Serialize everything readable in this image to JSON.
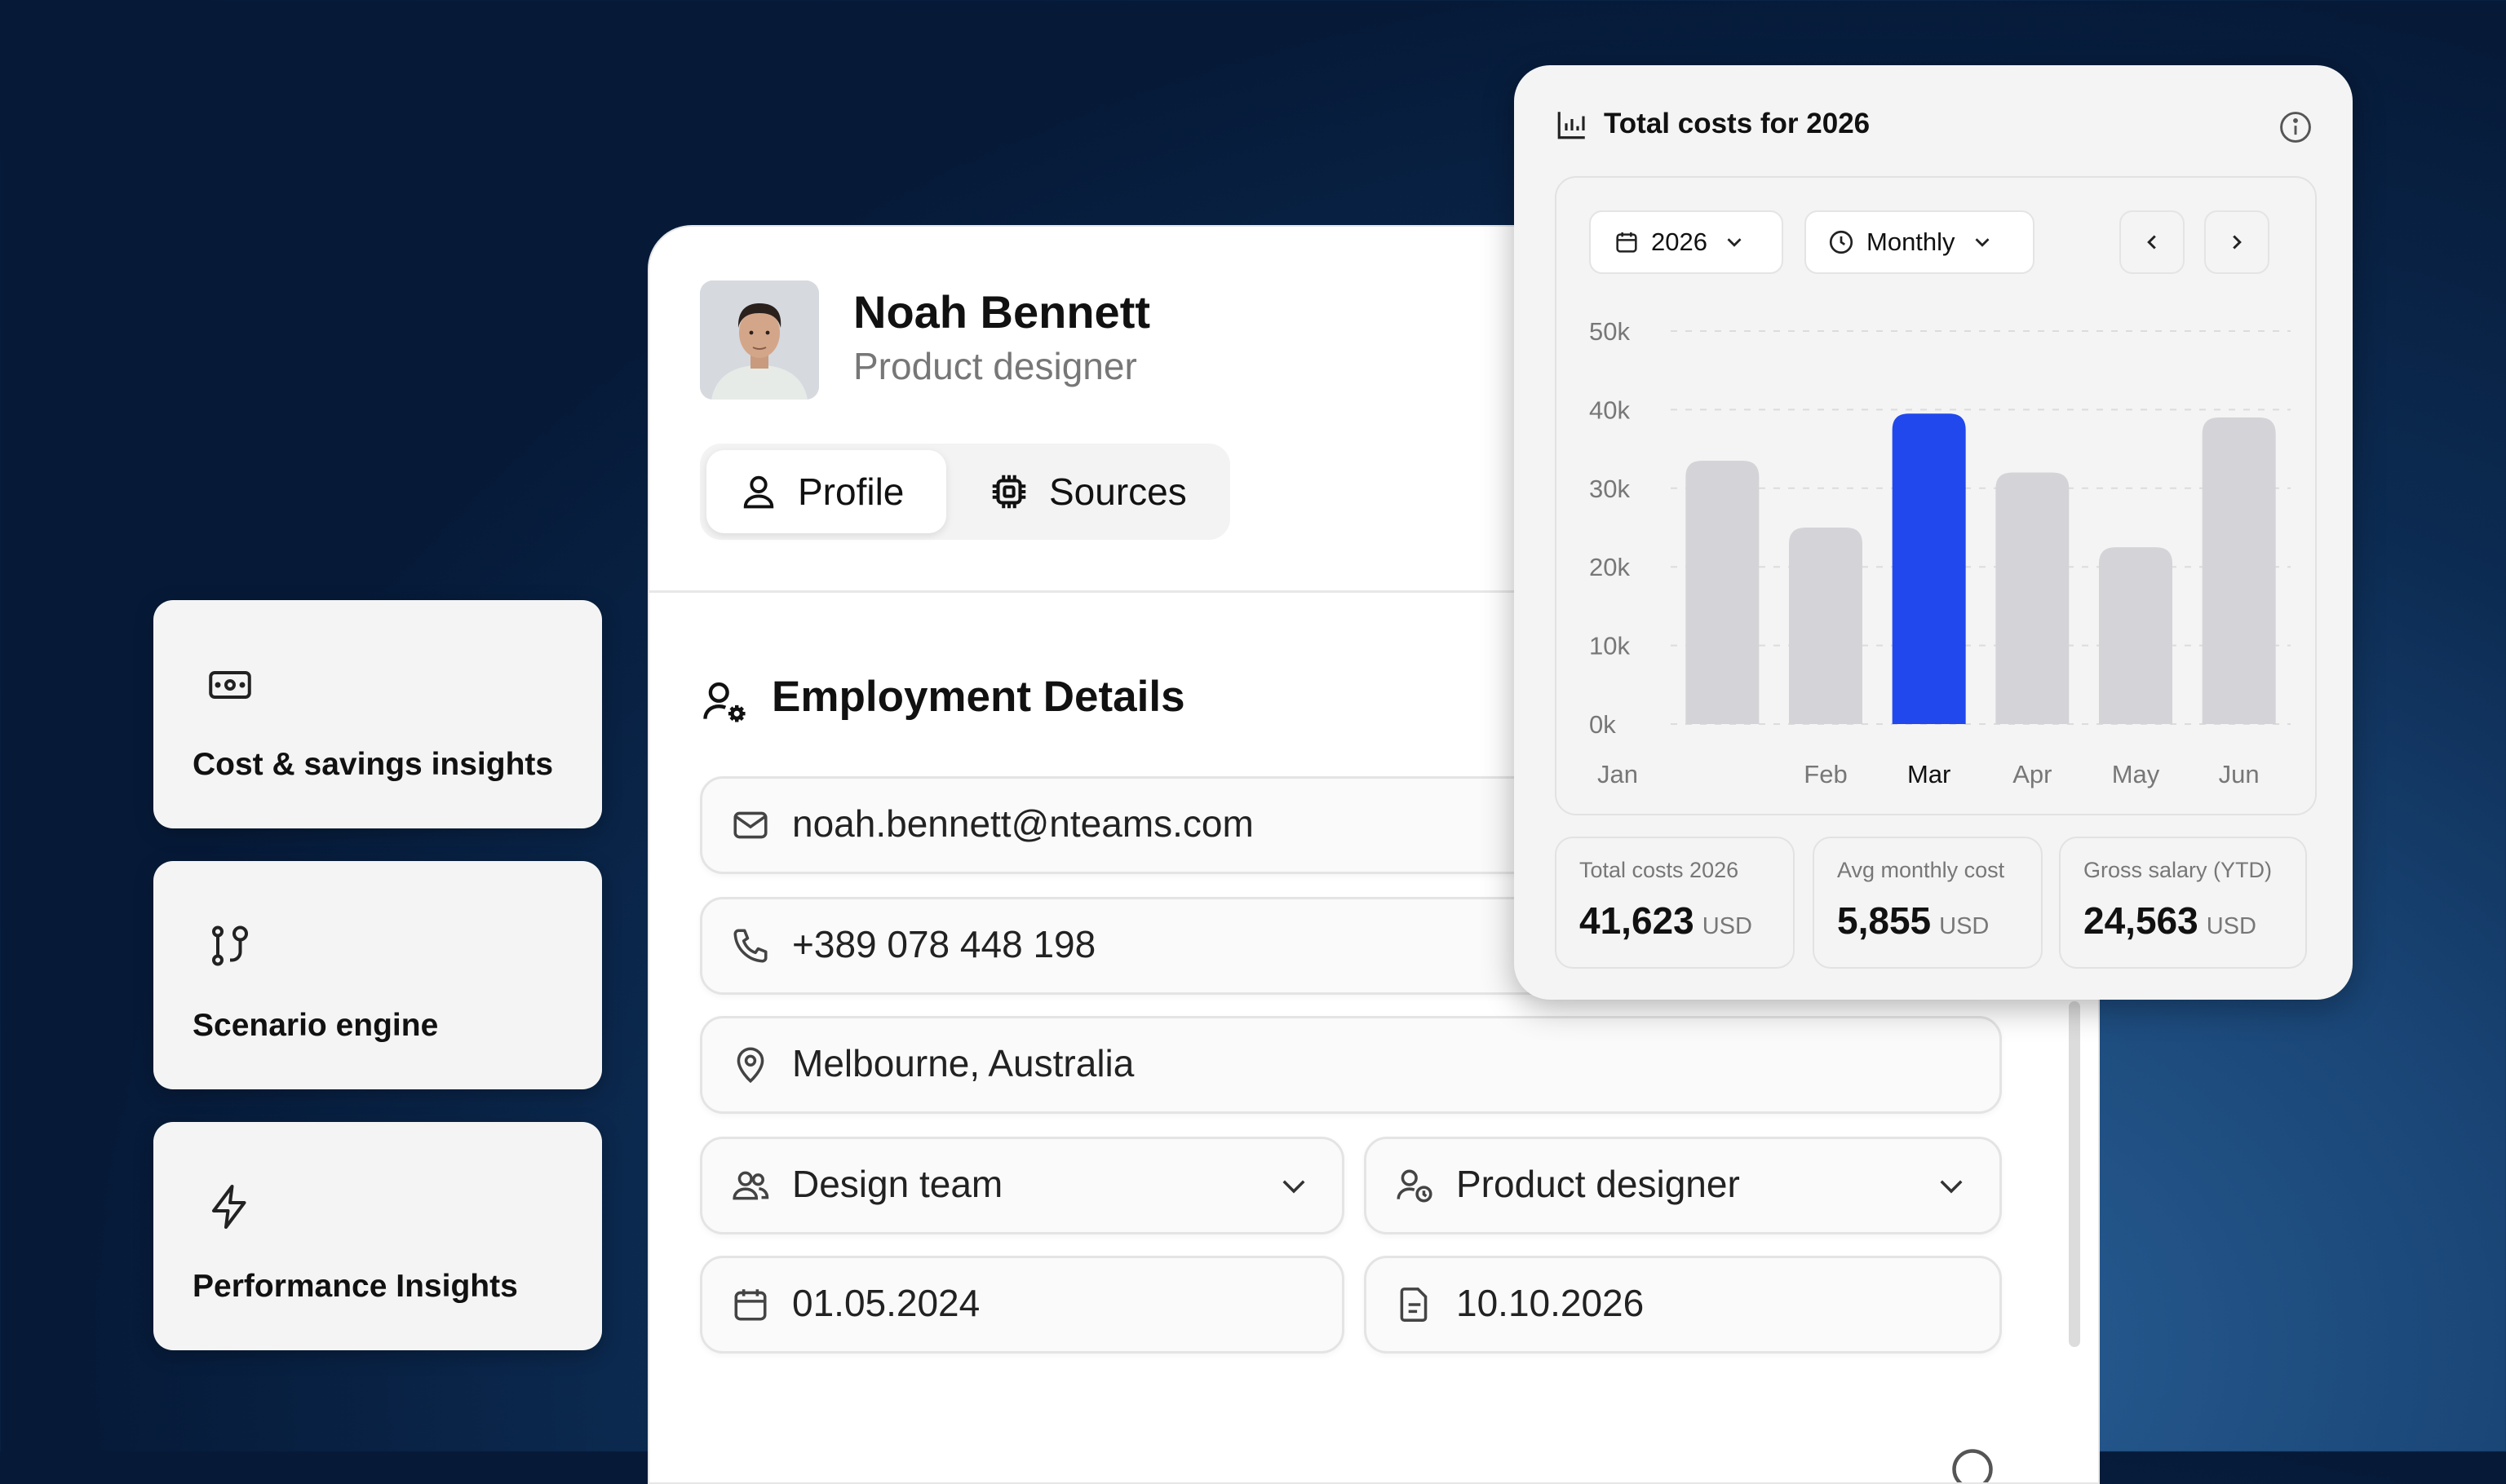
{
  "features": [
    {
      "label": "Cost & savings insights",
      "icon": "banknote-icon"
    },
    {
      "label": "Scenario engine",
      "icon": "route-icon"
    },
    {
      "label": "Performance Insights",
      "icon": "lightning-icon"
    }
  ],
  "profile": {
    "name": "Noah Bennett",
    "role": "Product designer",
    "tabs": [
      {
        "label": "Profile",
        "icon": "user-icon",
        "active": true
      },
      {
        "label": "Sources",
        "icon": "chip-icon",
        "active": false
      }
    ]
  },
  "employment": {
    "title": "Employment Details",
    "email": "noah.bennett@nteams.com",
    "phone": "+389 078 448 198",
    "location": "Melbourne, Australia",
    "team": "Design team",
    "position": "Product designer",
    "start_date": "01.05.2024",
    "end_date": "10.10.2026"
  },
  "cost_card": {
    "title": "Total costs for 2026",
    "year_select": "2026",
    "period_select": "Monthly",
    "stats": [
      {
        "label": "Total costs 2026",
        "value": "41,623",
        "unit": "USD"
      },
      {
        "label": "Avg monthly cost",
        "value": "5,855",
        "unit": "USD"
      },
      {
        "label": "Gross salary (YTD)",
        "value": "24,563",
        "unit": "USD"
      }
    ]
  },
  "chart_data": {
    "type": "bar",
    "title": "",
    "categories": [
      "Jan",
      "Feb",
      "Mar",
      "Apr",
      "May",
      "Jun"
    ],
    "values": [
      33500,
      25000,
      39500,
      32000,
      22500,
      39000
    ],
    "highlight_index": 2,
    "yticks": [
      "0k",
      "10k",
      "20k",
      "30k",
      "40k",
      "50k"
    ],
    "ylim": [
      0,
      50000
    ],
    "grid": true,
    "colors": {
      "bar": "#d4d4d8",
      "highlight": "#2148ec"
    }
  }
}
